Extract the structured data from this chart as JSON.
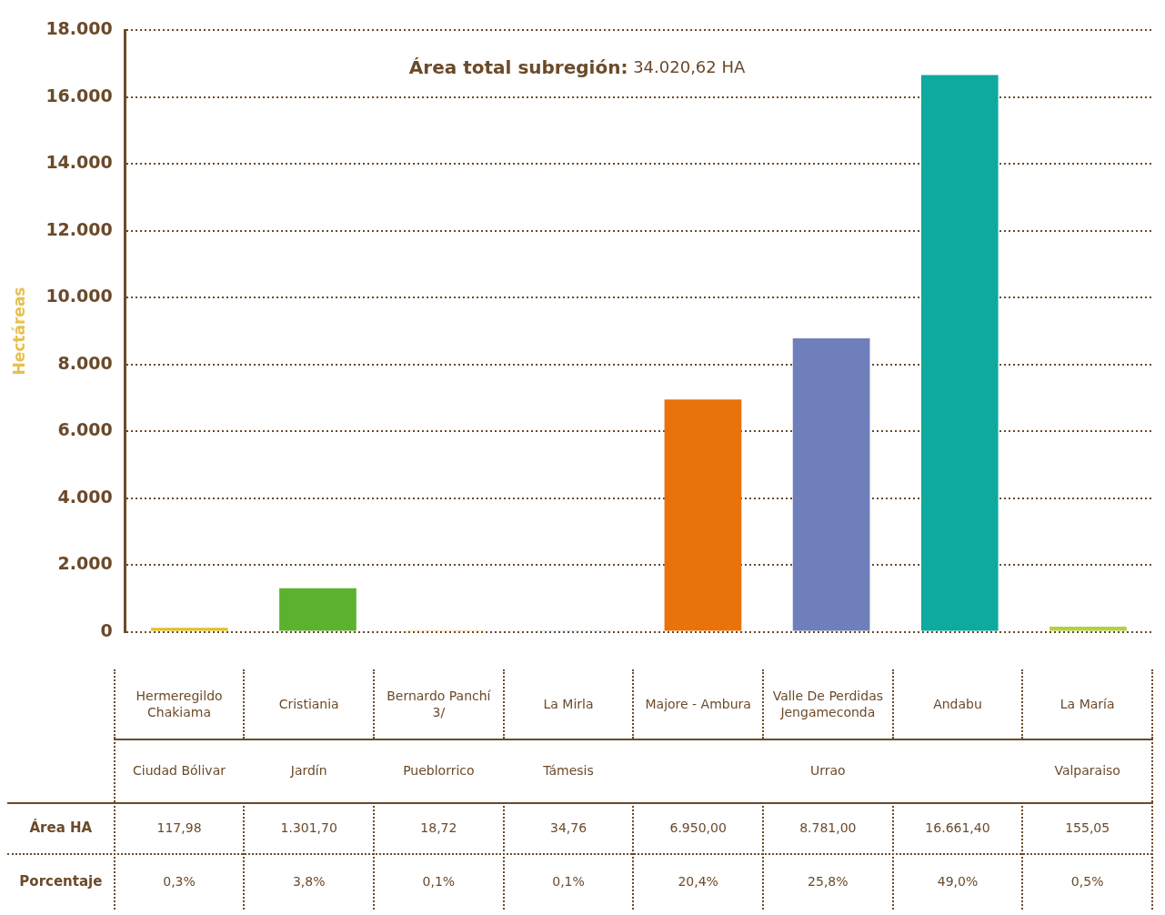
{
  "chart_data": {
    "type": "bar",
    "ylabel": "Hectáreas",
    "categories": [
      "Hermeregildo Chakiama",
      "Cristiania",
      "Bernardo Panchí 3/",
      "La Mirla",
      "Majore - Ambura",
      "Valle De Perdidas Jengameconda",
      "Andabu",
      "La María"
    ],
    "values": [
      117.98,
      1301.7,
      18.72,
      34.76,
      6950.0,
      8781.0,
      16661.4,
      155.05
    ],
    "colors": [
      "#e6bf1e",
      "#5cb22e",
      "#fbc370",
      "#7fb3cf",
      "#ea720a",
      "#6f7fbb",
      "#0ea99f",
      "#b2d13c"
    ],
    "value_labels": [
      "117,98",
      "1.301,70",
      "18,72",
      "34,76",
      "6.950,00",
      "8.781,00",
      "16.661,40",
      "155,05"
    ],
    "ylim": [
      0,
      18000
    ],
    "yticks": [
      {
        "value": 0,
        "label": "0"
      },
      {
        "value": 2000,
        "label": "2.000"
      },
      {
        "value": 4000,
        "label": "4.000"
      },
      {
        "value": 6000,
        "label": "6.000"
      },
      {
        "value": 8000,
        "label": "8.000"
      },
      {
        "value": 10000,
        "label": "10.000"
      },
      {
        "value": 12000,
        "label": "12.000"
      },
      {
        "value": 14000,
        "label": "14.000"
      },
      {
        "value": 16000,
        "label": "16.000"
      },
      {
        "value": 18000,
        "label": "18.000"
      }
    ],
    "grid": "y",
    "legend": false,
    "annotations": [
      "Área total subregión: 34.020,62 HA",
      "Área HA",
      "Porcentaje",
      "Ciudad Bólivar",
      "Jardín",
      "Pueblorrico",
      "Támesis",
      "Urrao",
      "Valparaiso",
      "0,3%",
      "3,8%",
      "0,1%",
      "0,1%",
      "20,4%",
      "25,8%",
      "49,0%",
      "0,5%"
    ]
  }
}
